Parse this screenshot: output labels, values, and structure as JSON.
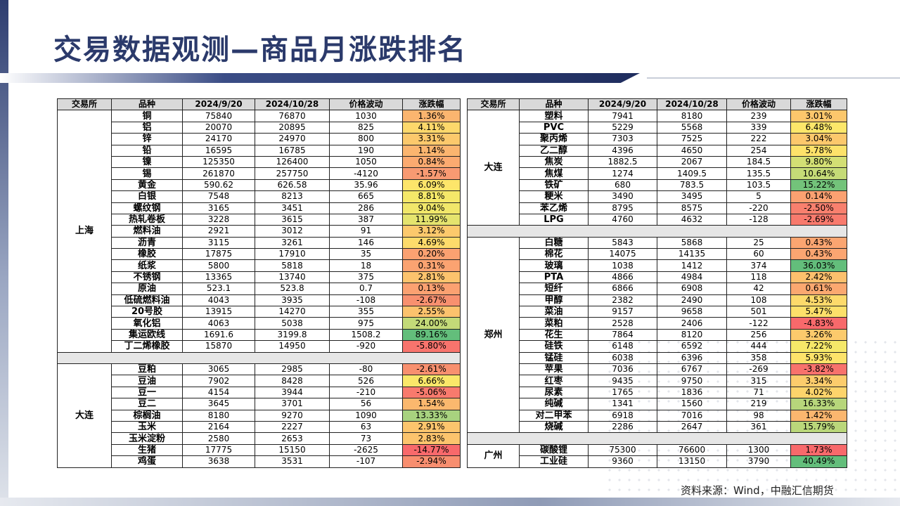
{
  "title": "交易数据观测—商品月涨跌排名",
  "source": "资料来源：Wind，中融汇信期货",
  "headers": [
    "交易所",
    "品种",
    "2024/9/20",
    "2024/10/28",
    "价格波动",
    "涨跌幅"
  ],
  "left_groups": [
    {
      "exchange": "上海",
      "rows": [
        {
          "name": "铜",
          "d1": "75840",
          "d2": "76870",
          "chg": "1030",
          "pct": "1.36%",
          "color": "#fbb56f"
        },
        {
          "name": "铝",
          "d1": "20070",
          "d2": "20895",
          "chg": "825",
          "pct": "4.11%",
          "color": "#fdd86b"
        },
        {
          "name": "锌",
          "d1": "24170",
          "d2": "24970",
          "chg": "800",
          "pct": "3.31%",
          "color": "#fcc96c"
        },
        {
          "name": "铅",
          "d1": "16595",
          "d2": "16785",
          "chg": "190",
          "pct": "1.14%",
          "color": "#fbb56f"
        },
        {
          "name": "镍",
          "d1": "125350",
          "d2": "126400",
          "chg": "1050",
          "pct": "0.84%",
          "color": "#fbaa70"
        },
        {
          "name": "锡",
          "d1": "261870",
          "d2": "257750",
          "chg": "-4120",
          "pct": "-1.57%",
          "color": "#f89a72"
        },
        {
          "name": "黄金",
          "d1": "590.62",
          "d2": "626.58",
          "chg": "35.96",
          "pct": "6.09%",
          "color": "#fde56a"
        },
        {
          "name": "白银",
          "d1": "7548",
          "d2": "8213",
          "chg": "665",
          "pct": "8.81%",
          "color": "#f5e869"
        },
        {
          "name": "螺纹钢",
          "d1": "3165",
          "d2": "3451",
          "chg": "286",
          "pct": "9.04%",
          "color": "#f1e76a"
        },
        {
          "name": "热轧卷板",
          "d1": "3228",
          "d2": "3615",
          "chg": "387",
          "pct": "11.99%",
          "color": "#e5e46e"
        },
        {
          "name": "燃料油",
          "d1": "2921",
          "d2": "3012",
          "chg": "91",
          "pct": "3.12%",
          "color": "#fcc96c"
        },
        {
          "name": "沥青",
          "d1": "3115",
          "d2": "3261",
          "chg": "146",
          "pct": "4.69%",
          "color": "#fddb6b"
        },
        {
          "name": "橡胶",
          "d1": "17875",
          "d2": "17910",
          "chg": "35",
          "pct": "0.20%",
          "color": "#fba171"
        },
        {
          "name": "纸浆",
          "d1": "5800",
          "d2": "5818",
          "chg": "18",
          "pct": "0.31%",
          "color": "#fba371"
        },
        {
          "name": "不锈钢",
          "d1": "13365",
          "d2": "13740",
          "chg": "375",
          "pct": "2.81%",
          "color": "#fcc36d"
        },
        {
          "name": "原油",
          "d1": "523.1",
          "d2": "523.8",
          "chg": "0.7",
          "pct": "0.13%",
          "color": "#fba171"
        },
        {
          "name": "低硫燃料油",
          "d1": "4043",
          "d2": "3935",
          "chg": "-108",
          "pct": "-2.67%",
          "color": "#f8906f"
        },
        {
          "name": "20号胶",
          "d1": "13915",
          "d2": "14270",
          "chg": "355",
          "pct": "2.55%",
          "color": "#fcc26d"
        },
        {
          "name": "氧化铝",
          "d1": "4063",
          "d2": "5038",
          "chg": "975",
          "pct": "24.00%",
          "color": "#c3da78"
        },
        {
          "name": "集运欧线",
          "d1": "1691.6",
          "d2": "3199.8",
          "chg": "1508.2",
          "pct": "89.16%",
          "color": "#63be7b"
        },
        {
          "name": "丁二烯橡胶",
          "d1": "15870",
          "d2": "14950",
          "chg": "-920",
          "pct": "-5.80%",
          "color": "#f8746d"
        }
      ]
    },
    {
      "exchange": "大连",
      "rows": [
        {
          "name": "豆粕",
          "d1": "3065",
          "d2": "2985",
          "chg": "-80",
          "pct": "-2.61%",
          "color": "#f8906f"
        },
        {
          "name": "豆油",
          "d1": "7902",
          "d2": "8428",
          "chg": "526",
          "pct": "6.66%",
          "color": "#fae769"
        },
        {
          "name": "豆一",
          "d1": "4154",
          "d2": "3944",
          "chg": "-210",
          "pct": "-5.06%",
          "color": "#f87a6d"
        },
        {
          "name": "豆二",
          "d1": "3645",
          "d2": "3701",
          "chg": "56",
          "pct": "1.54%",
          "color": "#fbb86e"
        },
        {
          "name": "棕榈油",
          "d1": "8180",
          "d2": "9270",
          "chg": "1090",
          "pct": "13.33%",
          "color": "#a8d27f"
        },
        {
          "name": "玉米",
          "d1": "2164",
          "d2": "2227",
          "chg": "63",
          "pct": "2.91%",
          "color": "#fcc56d"
        },
        {
          "name": "玉米淀粉",
          "d1": "2580",
          "d2": "2653",
          "chg": "73",
          "pct": "2.83%",
          "color": "#fcc46d"
        },
        {
          "name": "生猪",
          "d1": "17775",
          "d2": "15150",
          "chg": "-2625",
          "pct": "-14.77%",
          "color": "#f8696b"
        },
        {
          "name": "鸡蛋",
          "d1": "3638",
          "d2": "3531",
          "chg": "-107",
          "pct": "-2.94%",
          "color": "#f88e6f"
        }
      ]
    }
  ],
  "right_groups": [
    {
      "exchange": "大连",
      "rows": [
        {
          "name": "塑料",
          "d1": "7941",
          "d2": "8180",
          "chg": "239",
          "pct": "3.01%",
          "color": "#fcc76c"
        },
        {
          "name": "PVC",
          "d1": "5229",
          "d2": "5568",
          "chg": "339",
          "pct": "6.48%",
          "color": "#fde76a"
        },
        {
          "name": "聚丙烯",
          "d1": "7303",
          "d2": "7525",
          "chg": "222",
          "pct": "3.04%",
          "color": "#fcc86c"
        },
        {
          "name": "乙二醇",
          "d1": "4396",
          "d2": "4650",
          "chg": "254",
          "pct": "5.78%",
          "color": "#fde26a"
        },
        {
          "name": "焦炭",
          "d1": "1882.5",
          "d2": "2067",
          "chg": "184.5",
          "pct": "9.80%",
          "color": "#d3df74"
        },
        {
          "name": "焦煤",
          "d1": "1274",
          "d2": "1409.5",
          "chg": "135.5",
          "pct": "10.64%",
          "color": "#c5db77"
        },
        {
          "name": "铁矿",
          "d1": "680",
          "d2": "783.5",
          "chg": "103.5",
          "pct": "15.22%",
          "color": "#73c37a"
        },
        {
          "name": "粳米",
          "d1": "3490",
          "d2": "3495",
          "chg": "5",
          "pct": "0.14%",
          "color": "#fba171"
        },
        {
          "name": "苯乙烯",
          "d1": "8795",
          "d2": "8575",
          "chg": "-220",
          "pct": "-2.50%",
          "color": "#f8806e"
        },
        {
          "name": "LPG",
          "d1": "4760",
          "d2": "4632",
          "chg": "-128",
          "pct": "-2.69%",
          "color": "#f87a6d"
        }
      ]
    },
    {
      "exchange": "郑州",
      "rows": [
        {
          "name": "白糖",
          "d1": "5843",
          "d2": "5868",
          "chg": "25",
          "pct": "0.43%",
          "color": "#fba571"
        },
        {
          "name": "棉花",
          "d1": "14075",
          "d2": "14135",
          "chg": "60",
          "pct": "0.43%",
          "color": "#fba571"
        },
        {
          "name": "玻璃",
          "d1": "1038",
          "d2": "1412",
          "chg": "374",
          "pct": "36.03%",
          "color": "#63be7b"
        },
        {
          "name": "PTA",
          "d1": "4866",
          "d2": "4984",
          "chg": "118",
          "pct": "2.42%",
          "color": "#fcc06d"
        },
        {
          "name": "短纤",
          "d1": "6866",
          "d2": "6908",
          "chg": "42",
          "pct": "0.61%",
          "color": "#fba870"
        },
        {
          "name": "甲醇",
          "d1": "2382",
          "d2": "2490",
          "chg": "108",
          "pct": "4.53%",
          "color": "#fdda6b"
        },
        {
          "name": "菜油",
          "d1": "9157",
          "d2": "9658",
          "chg": "501",
          "pct": "5.47%",
          "color": "#fde06a"
        },
        {
          "name": "菜粕",
          "d1": "2528",
          "d2": "2406",
          "chg": "-122",
          "pct": "-4.83%",
          "color": "#f8696b"
        },
        {
          "name": "花生",
          "d1": "7864",
          "d2": "8120",
          "chg": "256",
          "pct": "3.26%",
          "color": "#fcca6c"
        },
        {
          "name": "硅铁",
          "d1": "6148",
          "d2": "6592",
          "chg": "444",
          "pct": "7.22%",
          "color": "#f5e869"
        },
        {
          "name": "锰硅",
          "d1": "6038",
          "d2": "6396",
          "chg": "358",
          "pct": "5.93%",
          "color": "#fde36a"
        },
        {
          "name": "苹果",
          "d1": "7036",
          "d2": "6767",
          "chg": "-269",
          "pct": "-3.82%",
          "color": "#f8726c"
        },
        {
          "name": "红枣",
          "d1": "9435",
          "d2": "9750",
          "chg": "315",
          "pct": "3.34%",
          "color": "#fccc6c"
        },
        {
          "name": "尿素",
          "d1": "1765",
          "d2": "1836",
          "chg": "71",
          "pct": "4.02%",
          "color": "#fdd46b"
        },
        {
          "name": "纯碱",
          "d1": "1341",
          "d2": "1560",
          "chg": "219",
          "pct": "16.33%",
          "color": "#b7d67b"
        },
        {
          "name": "对二甲苯",
          "d1": "6918",
          "d2": "7016",
          "chg": "98",
          "pct": "1.42%",
          "color": "#fbb76f"
        },
        {
          "name": "烧碱",
          "d1": "2286",
          "d2": "2647",
          "chg": "361",
          "pct": "15.79%",
          "color": "#bad77a"
        }
      ]
    },
    {
      "exchange": "广州",
      "rows": [
        {
          "name": "碳酸锂",
          "d1": "75300",
          "d2": "76600",
          "chg": "1300",
          "pct": "1.73%",
          "color": "#f8696b"
        },
        {
          "name": "工业硅",
          "d1": "9360",
          "d2": "13150",
          "chg": "3790",
          "pct": "40.49%",
          "color": "#63be7b"
        }
      ]
    }
  ]
}
